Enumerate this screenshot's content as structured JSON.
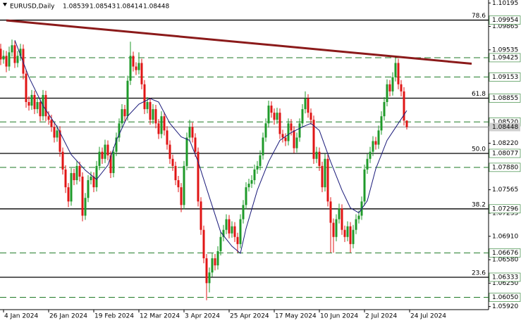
{
  "chart_data": {
    "type": "candlestick",
    "title": "EURUSD,Daily",
    "up_color": "#1f9a2a",
    "down_color": "#e01515",
    "level_color": "#1f7a25",
    "ma_color": "#1a1a7a",
    "trend_color": "#8b1a1a",
    "price_color": "#8c8c8c",
    "xlim": [
      -0.25,
      173
    ],
    "ylim": [
      1.05877,
      1.10237
    ],
    "xticks": [
      {
        "value": 1,
        "label": "4 Jan 2024"
      },
      {
        "value": 17,
        "label": "26 Jan 2024"
      },
      {
        "value": 33,
        "label": "19 Feb 2024"
      },
      {
        "value": 49,
        "label": "12 Mar 2024"
      },
      {
        "value": 65,
        "label": "3 Apr 2024"
      },
      {
        "value": 81,
        "label": "25 Apr 2024"
      },
      {
        "value": 97,
        "label": "17 May 2024"
      },
      {
        "value": 113,
        "label": "10 Jun 2024"
      },
      {
        "value": 129,
        "label": "2 Jul 2024"
      },
      {
        "value": 145,
        "label": "24 Jul 2024"
      }
    ],
    "yticks": [
      1.10195,
      1.09865,
      1.09535,
      {
        "value": 1.0822,
        "label": "1.08220"
      },
      1.07565,
      1.07235,
      {
        "value": 1.0691,
        "label": "1.06910"
      },
      {
        "value": 1.0658,
        "label": "1.06580"
      },
      {
        "value": 1.0625,
        "label": "1.06250"
      },
      {
        "value": 1.0592,
        "label": "1.05920"
      }
    ],
    "levels": [
      {
        "value": 1.09954,
        "label": "1.09954",
        "style": "solid",
        "fib": "78.6"
      },
      {
        "value": 1.09425,
        "label": "1.09425",
        "style": "dashed"
      },
      {
        "value": 1.09153,
        "label": "1.09153",
        "style": "dashed"
      },
      {
        "value": 1.08855,
        "label": "1.08855",
        "style": "solid",
        "fib": "61.8"
      },
      {
        "value": 1.0852,
        "label": "1.08520",
        "style": "dashed"
      },
      {
        "value": 1.08077,
        "label": "1.08077",
        "style": "solid",
        "fib": "50.0"
      },
      {
        "value": 1.0788,
        "label": "1.07880",
        "style": "dashed"
      },
      {
        "value": 1.07296,
        "label": "1.07296",
        "style": "solid",
        "fib": "38.2"
      },
      {
        "value": 1.06676,
        "label": "1.06676",
        "style": "dashed"
      },
      {
        "value": 1.06333,
        "label": "1.06333",
        "style": "solid",
        "fib": "23.6"
      },
      {
        "value": 1.0605,
        "label": "1.06050",
        "style": "dashed"
      }
    ],
    "trendline": {
      "x": [
        2,
        167
      ],
      "values": [
        1.0995,
        1.0934
      ]
    },
    "ma": {
      "x": [
        5,
        10,
        15,
        20,
        25,
        30,
        34,
        38,
        41,
        45,
        49,
        53,
        56,
        60,
        64,
        67,
        70,
        74,
        78,
        82,
        85,
        87,
        91,
        95,
        99,
        103,
        107,
        110,
        113,
        117,
        121,
        124,
        127,
        130,
        133,
        137,
        141,
        144
      ],
      "values": [
        1.0967,
        1.0915,
        1.0875,
        1.0845,
        1.0806,
        1.0784,
        1.0771,
        1.0791,
        1.0826,
        1.086,
        1.0877,
        1.0885,
        1.088,
        1.085,
        1.0831,
        1.0826,
        1.0796,
        1.0746,
        1.0697,
        1.0677,
        1.0667,
        1.0702,
        1.0756,
        1.0796,
        1.0826,
        1.0837,
        1.0845,
        1.085,
        1.084,
        1.0796,
        1.0756,
        1.0731,
        1.0724,
        1.0741,
        1.0786,
        1.0826,
        1.085,
        1.0868
      ]
    },
    "candles": [
      [
        1.0955,
        1.0962,
        1.0932,
        1.094
      ],
      [
        1.094,
        1.0953,
        1.0934,
        1.0945
      ],
      [
        1.0945,
        1.0952,
        1.0922,
        1.093
      ],
      [
        1.093,
        1.0958,
        1.0924,
        1.095
      ],
      [
        1.095,
        1.0968,
        1.0944,
        1.096
      ],
      [
        1.096,
        1.0966,
        1.0928,
        1.0935
      ],
      [
        1.0935,
        1.0952,
        1.0929,
        1.0945
      ],
      [
        1.0945,
        1.0962,
        1.0938,
        1.0955
      ],
      [
        1.0955,
        1.0961,
        1.0912,
        1.092
      ],
      [
        1.092,
        1.0926,
        1.0872,
        1.088
      ],
      [
        1.088,
        1.0888,
        1.0868,
        1.0875
      ],
      [
        1.0875,
        1.0897,
        1.0869,
        1.089
      ],
      [
        1.089,
        1.0896,
        1.0863,
        1.087
      ],
      [
        1.087,
        1.0887,
        1.0864,
        1.088
      ],
      [
        1.088,
        1.0886,
        1.0853,
        1.086
      ],
      [
        1.086,
        1.0897,
        1.0854,
        1.089
      ],
      [
        1.089,
        1.0896,
        1.0853,
        1.086
      ],
      [
        1.086,
        1.0867,
        1.0848,
        1.0855
      ],
      [
        1.0855,
        1.0862,
        1.0838,
        1.0845
      ],
      [
        1.0845,
        1.0851,
        1.0823,
        1.083
      ],
      [
        1.083,
        1.0847,
        1.0824,
        1.084
      ],
      [
        1.084,
        1.0846,
        1.0803,
        1.081
      ],
      [
        1.081,
        1.0816,
        1.0778,
        1.0785
      ],
      [
        1.0785,
        1.0791,
        1.0752,
        1.076
      ],
      [
        1.076,
        1.0766,
        1.0732,
        1.074
      ],
      [
        1.074,
        1.0787,
        1.0734,
        1.078
      ],
      [
        1.078,
        1.0786,
        1.0763,
        1.077
      ],
      [
        1.077,
        1.0797,
        1.0764,
        1.079
      ],
      [
        1.079,
        1.0796,
        1.0768,
        1.0775
      ],
      [
        1.0775,
        1.0781,
        1.0712,
        1.072
      ],
      [
        1.072,
        1.0752,
        1.0714,
        1.0745
      ],
      [
        1.0745,
        1.0777,
        1.0739,
        1.077
      ],
      [
        1.077,
        1.0782,
        1.0764,
        1.0775
      ],
      [
        1.0775,
        1.0781,
        1.0753,
        1.076
      ],
      [
        1.076,
        1.0797,
        1.0754,
        1.079
      ],
      [
        1.079,
        1.0817,
        1.0784,
        1.081
      ],
      [
        1.081,
        1.0816,
        1.0793,
        1.08
      ],
      [
        1.08,
        1.0827,
        1.0794,
        1.082
      ],
      [
        1.082,
        1.0826,
        1.0798,
        1.0805
      ],
      [
        1.0805,
        1.0811,
        1.0773,
        1.078
      ],
      [
        1.078,
        1.0817,
        1.0774,
        1.081
      ],
      [
        1.081,
        1.0837,
        1.0804,
        1.083
      ],
      [
        1.083,
        1.0857,
        1.0824,
        1.085
      ],
      [
        1.085,
        1.0877,
        1.0844,
        1.087
      ],
      [
        1.087,
        1.0876,
        1.0853,
        1.086
      ],
      [
        1.086,
        1.0917,
        1.0854,
        1.091
      ],
      [
        1.091,
        1.0965,
        1.0904,
        1.0945
      ],
      [
        1.0945,
        1.0951,
        1.0923,
        1.093
      ],
      [
        1.093,
        1.0936,
        1.0918,
        1.0925
      ],
      [
        1.0925,
        1.095,
        1.0919,
        1.0935
      ],
      [
        1.0935,
        1.0941,
        1.0898,
        1.0905
      ],
      [
        1.0905,
        1.0911,
        1.0863,
        1.087
      ],
      [
        1.087,
        1.0887,
        1.0864,
        1.088
      ],
      [
        1.088,
        1.0886,
        1.0848,
        1.0855
      ],
      [
        1.0855,
        1.0877,
        1.0849,
        1.087
      ],
      [
        1.087,
        1.0876,
        1.0843,
        1.085
      ],
      [
        1.085,
        1.0856,
        1.0828,
        1.0835
      ],
      [
        1.0835,
        1.0867,
        1.0829,
        1.086
      ],
      [
        1.086,
        1.0866,
        1.0833,
        1.084
      ],
      [
        1.084,
        1.0846,
        1.0813,
        1.082
      ],
      [
        1.082,
        1.0826,
        1.0793,
        1.08
      ],
      [
        1.08,
        1.0806,
        1.0783,
        1.079
      ],
      [
        1.079,
        1.0796,
        1.0763,
        1.077
      ],
      [
        1.077,
        1.0776,
        1.0753,
        1.076
      ],
      [
        1.076,
        1.0766,
        1.0725,
        1.0735
      ],
      [
        1.0735,
        1.0797,
        1.0729,
        1.079
      ],
      [
        1.079,
        1.0837,
        1.0784,
        1.083
      ],
      [
        1.083,
        1.0855,
        1.0824,
        1.0845
      ],
      [
        1.0845,
        1.0851,
        1.0823,
        1.083
      ],
      [
        1.083,
        1.0836,
        1.0803,
        1.081
      ],
      [
        1.081,
        1.0816,
        1.0733,
        1.074
      ],
      [
        1.074,
        1.0746,
        1.0693,
        1.07
      ],
      [
        1.07,
        1.0706,
        1.0653,
        1.066
      ],
      [
        1.066,
        1.0666,
        1.0601,
        1.0625
      ],
      [
        1.0625,
        1.0647,
        1.0612,
        1.064
      ],
      [
        1.064,
        1.0667,
        1.0634,
        1.066
      ],
      [
        1.066,
        1.0666,
        1.0643,
        1.065
      ],
      [
        1.065,
        1.0677,
        1.0644,
        1.067
      ],
      [
        1.067,
        1.0697,
        1.0664,
        1.069
      ],
      [
        1.069,
        1.0707,
        1.0684,
        1.07
      ],
      [
        1.07,
        1.0722,
        1.0694,
        1.0715
      ],
      [
        1.0715,
        1.0721,
        1.0688,
        1.0695
      ],
      [
        1.0695,
        1.0712,
        1.0689,
        1.0705
      ],
      [
        1.0705,
        1.0711,
        1.0683,
        1.069
      ],
      [
        1.069,
        1.0696,
        1.0668,
        1.068
      ],
      [
        1.068,
        1.0722,
        1.0674,
        1.0715
      ],
      [
        1.0715,
        1.0742,
        1.0709,
        1.0735
      ],
      [
        1.0735,
        1.0767,
        1.0729,
        1.076
      ],
      [
        1.076,
        1.0772,
        1.0754,
        1.0765
      ],
      [
        1.0765,
        1.0777,
        1.0759,
        1.077
      ],
      [
        1.077,
        1.0792,
        1.0764,
        1.0785
      ],
      [
        1.0785,
        1.0797,
        1.0779,
        1.079
      ],
      [
        1.079,
        1.0812,
        1.0784,
        1.0805
      ],
      [
        1.0805,
        1.0837,
        1.0799,
        1.083
      ],
      [
        1.083,
        1.0857,
        1.0824,
        1.085
      ],
      [
        1.085,
        1.0882,
        1.0844,
        1.0875
      ],
      [
        1.0875,
        1.0881,
        1.0858,
        1.0865
      ],
      [
        1.0865,
        1.0871,
        1.0848,
        1.0855
      ],
      [
        1.0855,
        1.0872,
        1.0849,
        1.0865
      ],
      [
        1.0865,
        1.0871,
        1.0828,
        1.0835
      ],
      [
        1.0835,
        1.0841,
        1.0823,
        1.083
      ],
      [
        1.083,
        1.0836,
        1.0818,
        1.0825
      ],
      [
        1.0825,
        1.0857,
        1.0819,
        1.085
      ],
      [
        1.085,
        1.0856,
        1.0833,
        1.084
      ],
      [
        1.084,
        1.0846,
        1.0808,
        1.0815
      ],
      [
        1.0815,
        1.0837,
        1.0809,
        1.083
      ],
      [
        1.083,
        1.0857,
        1.0824,
        1.085
      ],
      [
        1.085,
        1.0877,
        1.0844,
        1.087
      ],
      [
        1.087,
        1.0895,
        1.0864,
        1.0885
      ],
      [
        1.0885,
        1.0891,
        1.0858,
        1.0865
      ],
      [
        1.0865,
        1.0871,
        1.0848,
        1.0855
      ],
      [
        1.0855,
        1.0861,
        1.0793,
        1.08
      ],
      [
        1.08,
        1.0817,
        1.0794,
        1.081
      ],
      [
        1.081,
        1.0816,
        1.0783,
        1.079
      ],
      [
        1.079,
        1.0796,
        1.0753,
        1.076
      ],
      [
        1.076,
        1.0807,
        1.0754,
        1.08
      ],
      [
        1.08,
        1.0806,
        1.0733,
        1.074
      ],
      [
        1.074,
        1.0746,
        1.0668,
        1.071
      ],
      [
        1.071,
        1.0716,
        1.0668,
        1.069
      ],
      [
        1.069,
        1.0722,
        1.0684,
        1.0715
      ],
      [
        1.0715,
        1.0737,
        1.0709,
        1.073
      ],
      [
        1.073,
        1.0736,
        1.0693,
        1.07
      ],
      [
        1.07,
        1.0706,
        1.0683,
        1.069
      ],
      [
        1.069,
        1.0712,
        1.0684,
        1.0705
      ],
      [
        1.0705,
        1.0711,
        1.0668,
        1.068
      ],
      [
        1.068,
        1.0707,
        1.0674,
        1.07
      ],
      [
        1.07,
        1.0722,
        1.0694,
        1.0715
      ],
      [
        1.0715,
        1.0727,
        1.0709,
        1.072
      ],
      [
        1.072,
        1.0747,
        1.0714,
        1.074
      ],
      [
        1.074,
        1.0792,
        1.0734,
        1.0785
      ],
      [
        1.0785,
        1.0807,
        1.0779,
        1.08
      ],
      [
        1.08,
        1.0817,
        1.0794,
        1.081
      ],
      [
        1.081,
        1.0832,
        1.0804,
        1.0825
      ],
      [
        1.0825,
        1.0831,
        1.0813,
        1.082
      ],
      [
        1.082,
        1.0847,
        1.0814,
        1.084
      ],
      [
        1.084,
        1.0867,
        1.0834,
        1.086
      ],
      [
        1.086,
        1.0887,
        1.0854,
        1.088
      ],
      [
        1.088,
        1.0912,
        1.0874,
        1.0905
      ],
      [
        1.0905,
        1.0911,
        1.0888,
        1.0895
      ],
      [
        1.0895,
        1.0922,
        1.0889,
        1.0915
      ],
      [
        1.0915,
        1.0945,
        1.0909,
        1.0935
      ],
      [
        1.0935,
        1.0941,
        1.0898,
        1.0905
      ],
      [
        1.0905,
        1.0911,
        1.0888,
        1.0895
      ],
      [
        1.0895,
        1.0901,
        1.0847,
        1.08539
      ],
      [
        1.08539,
        1.08543,
        1.08414,
        1.08448
      ]
    ]
  }
}
